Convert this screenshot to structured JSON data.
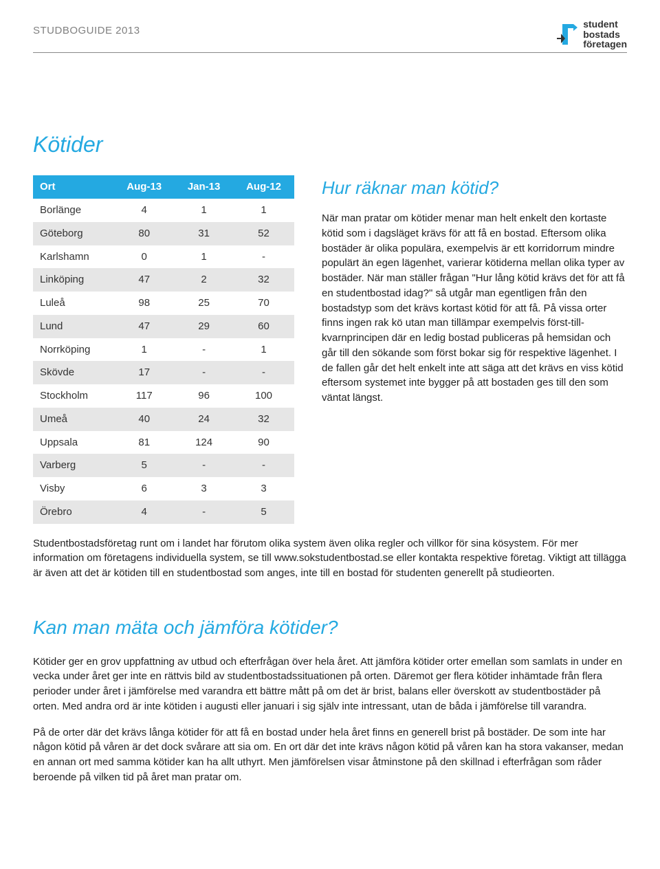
{
  "header": {
    "title": "STUDBOGUIDE 2013",
    "logo_line1": "student",
    "logo_line2": "bostads",
    "logo_line3": "företagen"
  },
  "kotider": {
    "title": "Kötider",
    "columns": [
      "Ort",
      "Aug-13",
      "Jan-13",
      "Aug-12"
    ],
    "rows": [
      [
        "Borlänge",
        "4",
        "1",
        "1"
      ],
      [
        "Göteborg",
        "80",
        "31",
        "52"
      ],
      [
        "Karlshamn",
        "0",
        "1",
        "-"
      ],
      [
        "Linköping",
        "47",
        "2",
        "32"
      ],
      [
        "Luleå",
        "98",
        "25",
        "70"
      ],
      [
        "Lund",
        "47",
        "29",
        "60"
      ],
      [
        "Norrköping",
        "1",
        "-",
        "1"
      ],
      [
        "Skövde",
        "17",
        "-",
        "-"
      ],
      [
        "Stockholm",
        "117",
        "96",
        "100"
      ],
      [
        "Umeå",
        "40",
        "24",
        "32"
      ],
      [
        "Uppsala",
        "81",
        "124",
        "90"
      ],
      [
        "Varberg",
        "5",
        "-",
        "-"
      ],
      [
        "Visby",
        "6",
        "3",
        "3"
      ],
      [
        "Örebro",
        "4",
        "-",
        "5"
      ]
    ]
  },
  "hur_raknar": {
    "title": "Hur räknar man kötid?",
    "para1": "När man pratar om kötider menar man helt enkelt den kortaste kötid som i dagsläget krävs för att få en bostad. Eftersom olika bostäder är olika populära, exempelvis är ett korridorrum mindre populärt än egen lägenhet, varierar kötiderna mellan olika typer av bostäder. När man ställer frågan \"Hur lång kötid krävs det för att få en studentbostad idag?\" så utgår man egentligen från den bostadstyp som det krävs kortast kötid för att få. På vissa orter finns ingen rak kö utan man tillämpar exempelvis först-till-kvarnprincipen där en ledig bostad publiceras på hemsidan och går till den sökande som först bokar sig för respektive lägenhet. I de fallen går det helt enkelt inte att säga att det krävs en viss kötid eftersom systemet inte bygger på att bostaden ges till den som väntat längst.",
    "para2": "Studentbostadsföretag runt om i landet har förutom olika system även olika regler och villkor för sina kösystem. För mer information om företagens individuella system, se till www.sokstudentbostad.se eller kontakta respektive företag. Viktigt att tillägga är även att det är kötiden till en studentbostad som anges, inte till en bostad för studenten generellt på studieorten."
  },
  "kan_man_mata": {
    "title": "Kan man mäta och jämföra kötider?",
    "para1": "Kötider ger en grov uppfattning av utbud och efterfrågan över hela året. Att jämföra kötider orter emellan som samlats in under en vecka under året ger inte en rättvis bild av studentbostadssituationen på orten. Däremot ger flera kötider inhämtade från flera perioder under året i jämförelse med varandra ett bättre mått på om det är brist, balans eller överskott av studentbostäder på orten. Med andra ord är inte kötiden i augusti eller januari i sig själv inte intressant, utan de båda i jämförelse till varandra.",
    "para2": "På de orter där det krävs långa kötider för att få en bostad under hela året finns en generell brist på bostäder. De som inte har någon kötid på våren är det dock svårare att sia om. En ort där det inte krävs någon kötid på våren kan ha stora vakanser, medan en annan ort med samma kötider kan ha allt uthyrt. Men jämförelsen visar åtminstone på den skillnad i efterfrågan som råder beroende på vilken tid på året man pratar om."
  },
  "colors": {
    "accent": "#24a9e1",
    "row_even": "#e6e6e6",
    "row_odd": "#ffffff",
    "header_text": "#808080"
  }
}
